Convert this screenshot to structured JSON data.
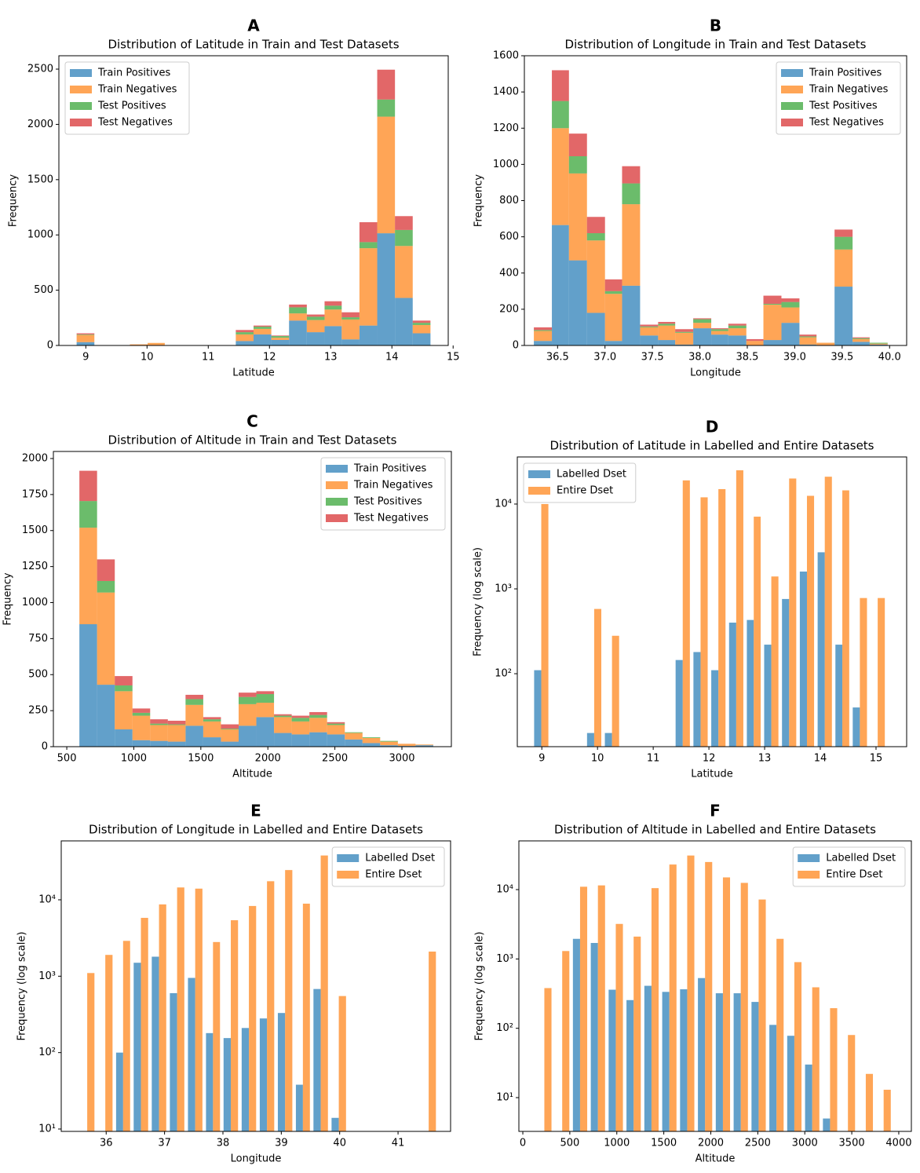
{
  "chart_data": [
    {
      "type": "histogram",
      "label": "A",
      "title": "Distribution of Latitude in Train and Test Datasets",
      "xlabel": "Latitude",
      "ylabel": "Frequency",
      "stacked": true,
      "ylog": false,
      "legend": "upper left",
      "opacity": 0.7,
      "bins": [
        8.85,
        9.14,
        9.43,
        9.72,
        10.01,
        10.29,
        10.58,
        10.87,
        11.16,
        11.45,
        11.74,
        12.03,
        12.32,
        12.61,
        12.9,
        13.18,
        13.47,
        13.76,
        14.05,
        14.34,
        14.63
      ],
      "series": [
        {
          "name": "Train Positives",
          "color": "#1f77b4",
          "values": [
            30,
            0,
            0,
            0,
            3,
            0,
            0,
            0,
            0,
            40,
            100,
            50,
            225,
            120,
            175,
            55,
            180,
            1015,
            430,
            110
          ]
        },
        {
          "name": "Train Negatives",
          "color": "#ff7f0e",
          "values": [
            65,
            0,
            0,
            10,
            20,
            0,
            0,
            0,
            0,
            60,
            50,
            20,
            65,
            110,
            150,
            180,
            700,
            1055,
            470,
            75
          ]
        },
        {
          "name": "Test Positives",
          "color": "#2ca02c",
          "values": [
            5,
            0,
            0,
            0,
            0,
            0,
            0,
            0,
            0,
            20,
            20,
            15,
            55,
            30,
            35,
            20,
            55,
            155,
            145,
            20
          ]
        },
        {
          "name": "Test Negatives",
          "color": "#d62728",
          "values": [
            10,
            0,
            0,
            0,
            0,
            0,
            0,
            0,
            0,
            20,
            10,
            5,
            25,
            20,
            40,
            45,
            180,
            270,
            125,
            20
          ]
        }
      ],
      "xlim": [
        8.56,
        14.92
      ],
      "xticks": [
        9,
        10,
        11,
        12,
        13,
        14,
        15
      ],
      "ylim": [
        0,
        2621
      ],
      "yticks": [
        0,
        500,
        1000,
        1500,
        2000,
        2500
      ]
    },
    {
      "type": "histogram",
      "label": "B",
      "title": "Distribution of Longitude in Train and Test Datasets",
      "xlabel": "Longitude",
      "ylabel": "Frequency",
      "stacked": true,
      "ylog": false,
      "legend": "upper right",
      "opacity": 0.7,
      "bins": [
        36.25,
        36.44,
        36.62,
        36.81,
        37.0,
        37.18,
        37.37,
        37.56,
        37.74,
        37.93,
        38.12,
        38.3,
        38.49,
        38.67,
        38.86,
        39.05,
        39.23,
        39.42,
        39.61,
        39.79,
        39.98
      ],
      "series": [
        {
          "name": "Train Positives",
          "color": "#1f77b4",
          "values": [
            25,
            665,
            470,
            180,
            25,
            330,
            55,
            30,
            5,
            95,
            60,
            55,
            0,
            30,
            125,
            5,
            0,
            325,
            20,
            5
          ]
        },
        {
          "name": "Train Negatives",
          "color": "#ff7f0e",
          "values": [
            55,
            535,
            480,
            400,
            260,
            450,
            45,
            80,
            65,
            30,
            20,
            40,
            25,
            195,
            85,
            40,
            15,
            205,
            15,
            5
          ]
        },
        {
          "name": "Test Positives",
          "color": "#2ca02c",
          "values": [
            5,
            150,
            95,
            40,
            15,
            115,
            5,
            10,
            5,
            20,
            10,
            15,
            0,
            5,
            30,
            5,
            0,
            70,
            5,
            5
          ]
        },
        {
          "name": "Test Negatives",
          "color": "#d62728",
          "values": [
            15,
            170,
            125,
            90,
            65,
            95,
            10,
            10,
            15,
            5,
            5,
            10,
            10,
            45,
            20,
            10,
            0,
            40,
            5,
            0
          ]
        }
      ],
      "xlim": [
        36.15,
        40.18
      ],
      "xticks": [
        36.5,
        {
          "value": 37,
          "label": "37.0"
        },
        37.5,
        {
          "value": 38,
          "label": "38.0"
        },
        38.5,
        {
          "value": 39,
          "label": "39.0"
        },
        39.5,
        {
          "value": 40,
          "label": "40.0"
        }
      ],
      "ylim": [
        0,
        1600
      ],
      "yticks": [
        0,
        200,
        400,
        600,
        800,
        1000,
        1200,
        1400,
        1600
      ]
    },
    {
      "type": "histogram",
      "label": "C",
      "title": "Distribution of Altitude in Train and Test Datasets",
      "xlabel": "Altitude",
      "ylabel": "Frequency",
      "stacked": true,
      "ylog": false,
      "legend": "upper right",
      "opacity": 0.7,
      "bins": [
        594,
        726,
        858,
        990,
        1122,
        1254,
        1386,
        1518,
        1650,
        1782,
        1914,
        2046,
        2178,
        2310,
        2442,
        2574,
        2706,
        2838,
        2970,
        3102,
        3234
      ],
      "series": [
        {
          "name": "Train Positives",
          "color": "#1f77b4",
          "values": [
            850,
            430,
            120,
            45,
            40,
            35,
            145,
            65,
            35,
            145,
            205,
            95,
            85,
            100,
            85,
            50,
            25,
            10,
            5,
            10
          ]
        },
        {
          "name": "Train Negatives",
          "color": "#ff7f0e",
          "values": [
            670,
            640,
            265,
            170,
            110,
            115,
            145,
            110,
            85,
            150,
            100,
            110,
            90,
            100,
            65,
            45,
            35,
            25,
            15,
            5
          ]
        },
        {
          "name": "Test Positives",
          "color": "#2ca02c",
          "values": [
            185,
            80,
            40,
            20,
            10,
            5,
            40,
            15,
            5,
            50,
            60,
            10,
            25,
            20,
            10,
            5,
            5,
            5,
            0,
            0
          ]
        },
        {
          "name": "Test Negatives",
          "color": "#d62728",
          "values": [
            210,
            150,
            65,
            30,
            30,
            25,
            30,
            15,
            30,
            30,
            20,
            10,
            15,
            20,
            10,
            0,
            0,
            0,
            0,
            0
          ]
        }
      ],
      "xlim": [
        400,
        3369
      ],
      "xticks": [
        500,
        1000,
        1500,
        2000,
        2500,
        3000
      ],
      "ylim": [
        0,
        2049
      ],
      "yticks": [
        0,
        250,
        500,
        750,
        1000,
        1250,
        1500,
        1750,
        2000
      ]
    },
    {
      "type": "histogram",
      "label": "D",
      "title": "Distribution of Latitude in Labelled and Entire Datasets",
      "xlabel": "Latitude",
      "ylabel": "Frequency (log scale)",
      "stacked": false,
      "ylog": true,
      "legend": "upper left",
      "opacity": 0.7,
      "bins": [
        8.83,
        9.15,
        9.47,
        9.78,
        10.1,
        10.42,
        10.74,
        11.06,
        11.37,
        11.69,
        12.01,
        12.33,
        12.65,
        12.96,
        13.28,
        13.6,
        13.92,
        14.24,
        14.55,
        14.87,
        15.19
      ],
      "series": [
        {
          "name": "Labelled Dset",
          "color": "#1f77b4",
          "values": [
            110,
            null,
            null,
            20,
            20,
            null,
            null,
            null,
            145,
            180,
            110,
            400,
            430,
            220,
            760,
            1600,
            2700,
            220,
            40,
            null
          ]
        },
        {
          "name": "Entire Dset",
          "color": "#ff7f0e",
          "values": [
            10000,
            null,
            null,
            580,
            280,
            null,
            null,
            null,
            19000,
            12000,
            15000,
            25000,
            7100,
            1400,
            20000,
            12500,
            21000,
            14500,
            780,
            780
          ]
        }
      ],
      "xlim": [
        8.56,
        15.55
      ],
      "xticks": [
        9,
        10,
        11,
        12,
        13,
        14,
        15
      ],
      "ylim": [
        13.8,
        35900
      ],
      "yticks": [
        {
          "value": 100,
          "label": "10²"
        },
        {
          "value": 1000,
          "label": "10³"
        },
        {
          "value": 10000,
          "label": "10⁴"
        }
      ]
    },
    {
      "type": "histogram",
      "label": "E",
      "title": "Distribution of Longitude in Labelled and Entire Datasets",
      "xlabel": "Longitude",
      "ylabel": "Frequency (log scale)",
      "stacked": false,
      "ylog": true,
      "legend": "upper right",
      "opacity": 0.7,
      "bins": [
        35.52,
        35.83,
        36.14,
        36.44,
        36.75,
        37.06,
        37.37,
        37.68,
        37.98,
        38.29,
        38.6,
        38.91,
        39.22,
        39.52,
        39.83,
        40.14,
        40.45,
        40.76,
        41.06,
        41.37,
        41.68
      ],
      "series": [
        {
          "name": "Labelled Dset",
          "color": "#1f77b4",
          "values": [
            null,
            null,
            100,
            1500,
            1800,
            600,
            950,
            180,
            155,
            210,
            280,
            330,
            38,
            680,
            14,
            null,
            null,
            null,
            null,
            null
          ]
        },
        {
          "name": "Entire Dset",
          "color": "#ff7f0e",
          "values": [
            1100,
            1900,
            2900,
            5800,
            8700,
            14500,
            14000,
            2800,
            5400,
            8300,
            17500,
            24500,
            8900,
            38000,
            550,
            null,
            null,
            null,
            null,
            2100
          ]
        }
      ],
      "xlim": [
        35.23,
        41.9
      ],
      "xticks": [
        36,
        37,
        38,
        39,
        40,
        41
      ],
      "ylim": [
        9.31,
        59000
      ],
      "yticks": [
        {
          "value": 10,
          "label": "10¹"
        },
        {
          "value": 100,
          "label": "10²"
        },
        {
          "value": 1000,
          "label": "10³"
        },
        {
          "value": 10000,
          "label": "10⁴"
        }
      ]
    },
    {
      "type": "histogram",
      "label": "F",
      "title": "Distribution of Altitude in Labelled and Entire Datasets",
      "xlabel": "Altitude",
      "ylabel": "Frequency (log scale)",
      "stacked": false,
      "ylog": true,
      "legend": "upper right",
      "opacity": 0.7,
      "bins": [
        134,
        324,
        514,
        704,
        894,
        1084,
        1274,
        1464,
        1654,
        1844,
        2034,
        2224,
        2414,
        2604,
        2794,
        2984,
        3174,
        3364,
        3554,
        3744,
        3934
      ],
      "series": [
        {
          "name": "Labelled Dset",
          "color": "#1f77b4",
          "values": [
            null,
            null,
            1950,
            1700,
            360,
            255,
            410,
            335,
            365,
            530,
            320,
            320,
            240,
            112,
            78,
            30,
            5,
            null,
            null,
            null
          ]
        },
        {
          "name": "Entire Dset",
          "color": "#ff7f0e",
          "values": [
            380,
            1300,
            11000,
            11500,
            3200,
            2100,
            10500,
            23000,
            31000,
            25000,
            15000,
            12500,
            7200,
            1950,
            900,
            390,
            195,
            80,
            22,
            13
          ]
        }
      ],
      "xlim": [
        -42,
        4134
      ],
      "xticks": [
        0,
        500,
        1000,
        1500,
        2000,
        2500,
        3000,
        3500,
        4000
      ],
      "ylim": [
        3.26,
        50400
      ],
      "yticks": [
        {
          "value": 10,
          "label": "10¹"
        },
        {
          "value": 100,
          "label": "10²"
        },
        {
          "value": 1000,
          "label": "10³"
        },
        {
          "value": 10000,
          "label": "10⁴"
        }
      ]
    }
  ]
}
